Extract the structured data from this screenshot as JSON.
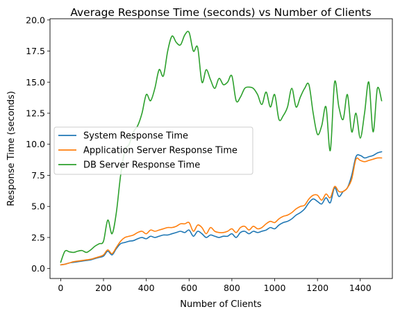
{
  "chart_data": {
    "type": "line",
    "title": "Average Response Time (seconds) vs Number of Clients",
    "xlabel": "Number of Clients",
    "ylabel": "Response Time (seconds)",
    "xlim": [
      -50,
      1550
    ],
    "ylim": [
      -0.8,
      20.1
    ],
    "x_ticks": [
      0,
      200,
      400,
      600,
      800,
      1000,
      1200,
      1400
    ],
    "y_ticks": [
      0.0,
      2.5,
      5.0,
      7.5,
      10.0,
      12.5,
      15.0,
      17.5,
      20.0
    ],
    "x_tick_labels": [
      "0",
      "200",
      "400",
      "600",
      "800",
      "1000",
      "1200",
      "1400"
    ],
    "y_tick_labels": [
      "0.0",
      "2.5",
      "5.0",
      "7.5",
      "10.0",
      "12.5",
      "15.0",
      "17.5",
      "20.0"
    ],
    "grid": false,
    "legend_position": "center-left",
    "x": [
      0,
      20,
      40,
      60,
      80,
      100,
      120,
      140,
      160,
      180,
      200,
      220,
      240,
      260,
      280,
      300,
      320,
      340,
      360,
      380,
      400,
      420,
      440,
      460,
      480,
      500,
      520,
      540,
      560,
      580,
      600,
      620,
      640,
      660,
      680,
      700,
      720,
      740,
      760,
      780,
      800,
      820,
      840,
      860,
      880,
      900,
      920,
      940,
      960,
      980,
      1000,
      1020,
      1040,
      1060,
      1080,
      1100,
      1120,
      1140,
      1160,
      1180,
      1200,
      1220,
      1240,
      1260,
      1280,
      1300,
      1320,
      1340,
      1360,
      1380,
      1400,
      1420,
      1440,
      1460,
      1480,
      1500
    ],
    "series": [
      {
        "name": "System Response Time",
        "color": "#1f77b4",
        "values": [
          0.3,
          0.35,
          0.45,
          0.5,
          0.55,
          0.6,
          0.65,
          0.7,
          0.8,
          0.9,
          1.0,
          1.4,
          1.1,
          1.6,
          2.0,
          2.1,
          2.2,
          2.25,
          2.4,
          2.5,
          2.4,
          2.6,
          2.5,
          2.6,
          2.7,
          2.7,
          2.8,
          2.9,
          3.0,
          2.9,
          3.1,
          2.6,
          3.0,
          2.8,
          2.5,
          2.7,
          2.6,
          2.5,
          2.6,
          2.6,
          2.8,
          2.5,
          2.9,
          3.0,
          2.8,
          3.0,
          2.9,
          3.0,
          3.1,
          3.3,
          3.2,
          3.5,
          3.7,
          3.8,
          4.0,
          4.3,
          4.5,
          4.8,
          5.3,
          5.6,
          5.4,
          5.2,
          5.7,
          5.3,
          6.5,
          5.8,
          6.2,
          6.5,
          7.5,
          9.0,
          9.1,
          8.9,
          9.0,
          9.1,
          9.3,
          9.4
        ]
      },
      {
        "name": "Application Server Response Time",
        "color": "#ff7f0e",
        "values": [
          0.3,
          0.35,
          0.45,
          0.55,
          0.6,
          0.65,
          0.7,
          0.75,
          0.85,
          0.95,
          1.1,
          1.5,
          1.2,
          1.7,
          2.2,
          2.5,
          2.6,
          2.7,
          2.9,
          3.0,
          2.8,
          3.1,
          3.0,
          3.1,
          3.2,
          3.3,
          3.3,
          3.4,
          3.6,
          3.6,
          3.7,
          3.0,
          3.5,
          3.3,
          2.8,
          3.3,
          3.0,
          2.9,
          2.9,
          3.0,
          3.2,
          2.9,
          3.3,
          3.4,
          3.1,
          3.4,
          3.2,
          3.3,
          3.6,
          3.8,
          3.7,
          4.0,
          4.2,
          4.3,
          4.5,
          4.8,
          5.0,
          5.1,
          5.6,
          5.9,
          5.9,
          5.5,
          6.0,
          5.7,
          6.6,
          6.2,
          6.2,
          6.5,
          7.2,
          8.8,
          8.7,
          8.6,
          8.7,
          8.8,
          8.9,
          8.9
        ]
      },
      {
        "name": "DB Server Response Time",
        "color": "#2ca02c",
        "values": [
          0.5,
          1.4,
          1.35,
          1.3,
          1.4,
          1.45,
          1.3,
          1.5,
          1.8,
          2.0,
          2.2,
          3.9,
          2.8,
          4.5,
          7.5,
          9.5,
          10.0,
          11.0,
          11.5,
          12.5,
          14.0,
          13.5,
          14.5,
          16.0,
          15.5,
          17.5,
          18.7,
          18.2,
          18.0,
          18.8,
          19.0,
          17.5,
          17.8,
          15.0,
          16.0,
          15.2,
          14.5,
          15.3,
          14.8,
          15.0,
          15.5,
          13.5,
          13.8,
          14.5,
          14.6,
          14.5,
          14.0,
          13.2,
          14.2,
          13.0,
          14.0,
          12.0,
          12.3,
          13.0,
          14.5,
          13.0,
          13.8,
          14.5,
          14.8,
          12.5,
          10.8,
          11.5,
          13.0,
          9.5,
          15.0,
          13.0,
          12.0,
          14.0,
          11.0,
          12.5,
          10.5,
          12.5,
          15.0,
          11.0,
          14.5,
          13.5
        ]
      }
    ]
  }
}
